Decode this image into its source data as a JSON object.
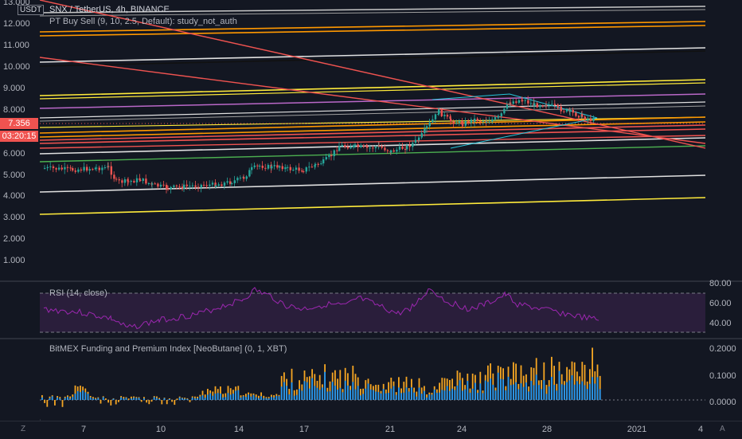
{
  "header": {
    "title": "SNX / TetherUS, 4h, BINANCE",
    "indicator": "PT Buy Sell (9, 10, 2.5, Default): study_not_auth",
    "currency": "USDT"
  },
  "price_axis": {
    "labels": [
      "13.000",
      "12.000",
      "11.000",
      "10.000",
      "9.000",
      "8.000",
      "6.000",
      "5.000",
      "4.000",
      "3.000",
      "2.000",
      "1.000"
    ],
    "current_price": "7.356",
    "countdown": "03:20:15"
  },
  "rsi": {
    "title": "RSI (14, close)",
    "labels": [
      "80.00",
      "60.00",
      "40.00"
    ]
  },
  "funding": {
    "title": "BitMEX Funding and Premium Index [NeoButane] (0, 1, XBT)",
    "labels": [
      "0.2000",
      "0.1000",
      "0.0000"
    ]
  },
  "time_axis": {
    "labels": [
      "7",
      "10",
      "14",
      "17",
      "21",
      "24",
      "28",
      "2021",
      "4"
    ]
  },
  "corner_buttons": {
    "left": "Z",
    "right": "A"
  },
  "colors": {
    "background": "#131722",
    "up": "#26a69a",
    "down": "#ef5350",
    "rsi": "#9c27b0",
    "funding_up": "#2196f3",
    "funding_down": "#f6a623"
  }
}
